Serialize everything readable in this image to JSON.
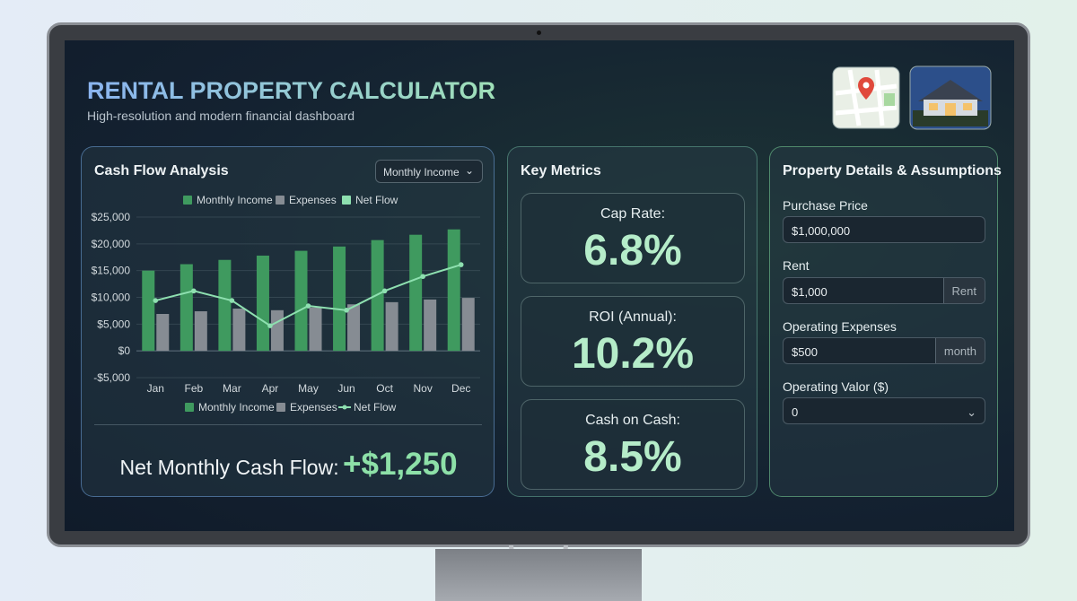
{
  "header": {
    "title": "RENTAL PROPERTY CALCULATOR",
    "subtitle": "High-resolution and modern financial dashboard"
  },
  "cash_flow": {
    "title": "Cash Flow Analysis",
    "dropdown": "Monthly Income",
    "net_label": "Net Monthly Cash Flow:",
    "net_value": "+$1,250"
  },
  "chart_data": {
    "type": "bar",
    "categories": [
      "Jan",
      "Feb",
      "Mar",
      "Apr",
      "May",
      "Jun",
      "Oct",
      "Nov",
      "Dec"
    ],
    "series": [
      {
        "name": "Monthly Income",
        "color": "#3f9a5f",
        "values": [
          15000,
          16200,
          17000,
          17800,
          18700,
          19500,
          20700,
          21700,
          22700
        ]
      },
      {
        "name": "Expenses",
        "color": "#868c93",
        "values": [
          6900,
          7400,
          7900,
          7600,
          8100,
          8700,
          9100,
          9600,
          9900
        ]
      },
      {
        "name": "Net Flow",
        "color": "#8ee0b0",
        "type": "line",
        "values": [
          9400,
          11200,
          9400,
          4700,
          8400,
          7600,
          11200,
          13900,
          16100
        ]
      }
    ],
    "ylim": [
      -5000,
      25000
    ],
    "yticks": [
      {
        "value": -5000,
        "label": "-$5,000"
      },
      {
        "value": 0,
        "label": "$0"
      },
      {
        "value": 5000,
        "label": "$5,000"
      },
      {
        "value": 10000,
        "label": "$10,000"
      },
      {
        "value": 15000,
        "label": "$15,000"
      },
      {
        "value": 20000,
        "label": "$20,000"
      },
      {
        "value": 25000,
        "label": "$25,000"
      }
    ],
    "grid": true
  },
  "metrics": {
    "title": "Key Metrics",
    "items": [
      {
        "label": "Cap Rate:",
        "value": "6.8%"
      },
      {
        "label": "ROI (Annual):",
        "value": "10.2%"
      },
      {
        "label": "Cash on Cash:",
        "value": "8.5%"
      }
    ]
  },
  "details": {
    "title": "Property Details & Assumptions",
    "fields": [
      {
        "label": "Purchase Price",
        "value": "$1,000,000"
      },
      {
        "label": "Rent",
        "value": "$1,000",
        "suffix": "Rent"
      },
      {
        "label": "Operating Expenses",
        "value": "$500",
        "suffix": "month"
      },
      {
        "label": "Operating Valor ($)",
        "value": "0"
      }
    ]
  }
}
